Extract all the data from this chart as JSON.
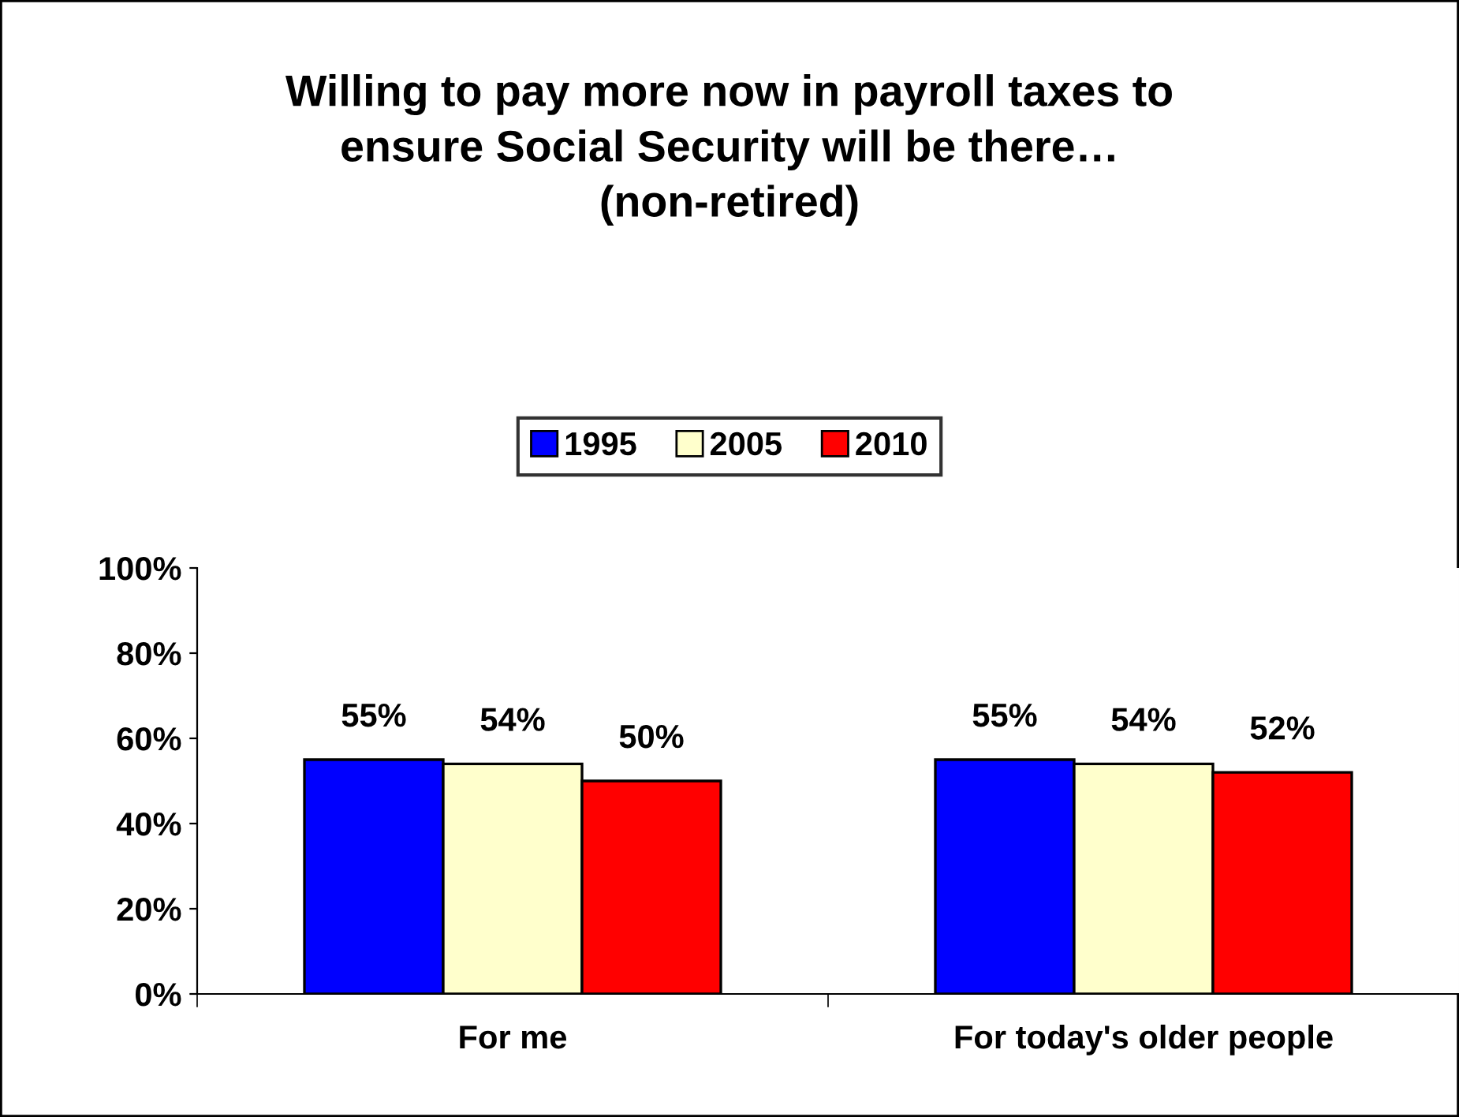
{
  "chart_data": {
    "type": "bar",
    "title": "Willing to pay more now in payroll taxes to\nensure Social Security will be there…\n(non-retired)",
    "categories": [
      "For me",
      "For today's older people"
    ],
    "series": [
      {
        "name": "1995",
        "color": "#0000ff",
        "values": [
          55,
          55
        ],
        "value_labels": [
          "55%",
          "55%"
        ]
      },
      {
        "name": "2005",
        "color": "#ffffcc",
        "values": [
          54,
          54
        ],
        "value_labels": [
          "54%",
          "54%"
        ]
      },
      {
        "name": "2010",
        "color": "#ff0000",
        "values": [
          50,
          52
        ],
        "value_labels": [
          "50%",
          "52%"
        ]
      }
    ],
    "ylim": [
      0,
      100
    ],
    "yticks": [
      {
        "value": 0,
        "label": "0%"
      },
      {
        "value": 20,
        "label": "20%"
      },
      {
        "value": 40,
        "label": "40%"
      },
      {
        "value": 60,
        "label": "60%"
      },
      {
        "value": 80,
        "label": "80%"
      },
      {
        "value": 100,
        "label": "100%"
      }
    ],
    "grid": false,
    "legend": "top"
  }
}
